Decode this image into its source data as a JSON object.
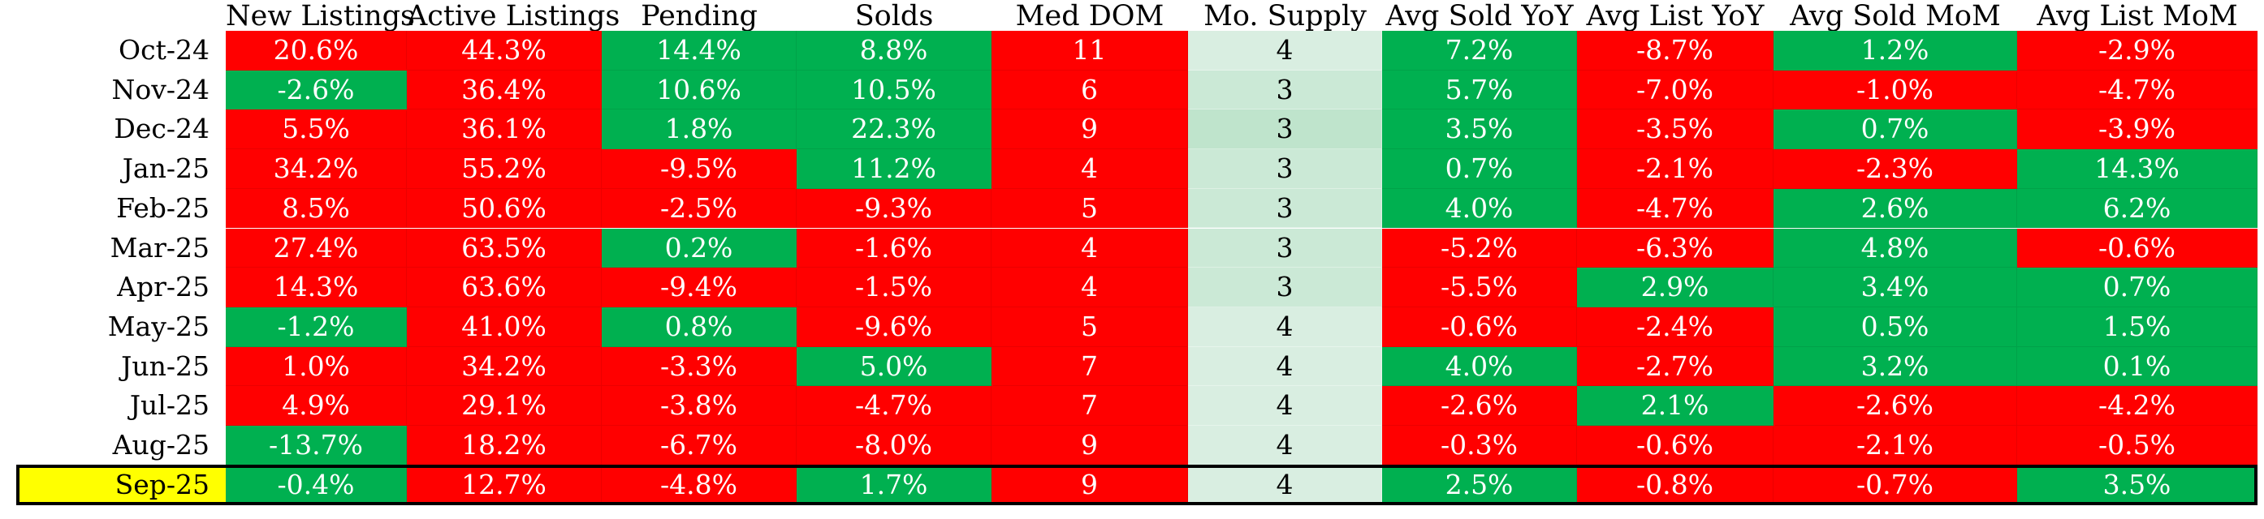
{
  "colors": {
    "negative": "#ff0000",
    "positive": "#00b050",
    "highlight": "#ffff00",
    "supply_shades": [
      "#d9eee1",
      "#cbe9d6",
      "#bfe4cc"
    ]
  },
  "table": {
    "columns": [
      "New Listings",
      "Active Listings",
      "Pending",
      "Solds",
      "Med DOM",
      "Mo. Supply",
      "Avg Sold YoY",
      "Avg List YoY",
      "Avg Sold MoM",
      "Avg List MoM"
    ],
    "highlighted_row": "Sep-25",
    "rows": [
      {
        "label": "Oct-24",
        "cells": [
          {
            "text": "20.6%",
            "status": "red"
          },
          {
            "text": "44.3%",
            "status": "red"
          },
          {
            "text": "14.4%",
            "status": "green"
          },
          {
            "text": "8.8%",
            "status": "green"
          },
          {
            "text": "11",
            "status": "red"
          },
          {
            "text": "4",
            "status": "supply",
            "shade": 0
          },
          {
            "text": "7.2%",
            "status": "green"
          },
          {
            "text": "-8.7%",
            "status": "red"
          },
          {
            "text": "1.2%",
            "status": "green"
          },
          {
            "text": "-2.9%",
            "status": "red"
          }
        ]
      },
      {
        "label": "Nov-24",
        "cells": [
          {
            "text": "-2.6%",
            "status": "green"
          },
          {
            "text": "36.4%",
            "status": "red"
          },
          {
            "text": "10.6%",
            "status": "green"
          },
          {
            "text": "10.5%",
            "status": "green"
          },
          {
            "text": "6",
            "status": "red"
          },
          {
            "text": "3",
            "status": "supply",
            "shade": 1
          },
          {
            "text": "5.7%",
            "status": "green"
          },
          {
            "text": "-7.0%",
            "status": "red"
          },
          {
            "text": "-1.0%",
            "status": "red"
          },
          {
            "text": "-4.7%",
            "status": "red"
          }
        ]
      },
      {
        "label": "Dec-24",
        "cells": [
          {
            "text": "5.5%",
            "status": "red"
          },
          {
            "text": "36.1%",
            "status": "red"
          },
          {
            "text": "1.8%",
            "status": "green"
          },
          {
            "text": "22.3%",
            "status": "green"
          },
          {
            "text": "9",
            "status": "red"
          },
          {
            "text": "3",
            "status": "supply",
            "shade": 2
          },
          {
            "text": "3.5%",
            "status": "green"
          },
          {
            "text": "-3.5%",
            "status": "red"
          },
          {
            "text": "0.7%",
            "status": "green"
          },
          {
            "text": "-3.9%",
            "status": "red"
          }
        ]
      },
      {
        "label": "Jan-25",
        "cells": [
          {
            "text": "34.2%",
            "status": "red"
          },
          {
            "text": "55.2%",
            "status": "red"
          },
          {
            "text": "-9.5%",
            "status": "red"
          },
          {
            "text": "11.2%",
            "status": "green"
          },
          {
            "text": "4",
            "status": "red"
          },
          {
            "text": "3",
            "status": "supply",
            "shade": 1
          },
          {
            "text": "0.7%",
            "status": "green"
          },
          {
            "text": "-2.1%",
            "status": "red"
          },
          {
            "text": "-2.3%",
            "status": "red"
          },
          {
            "text": "14.3%",
            "status": "green"
          }
        ]
      },
      {
        "label": "Feb-25",
        "cells": [
          {
            "text": "8.5%",
            "status": "red"
          },
          {
            "text": "50.6%",
            "status": "red"
          },
          {
            "text": "-2.5%",
            "status": "red"
          },
          {
            "text": "-9.3%",
            "status": "red"
          },
          {
            "text": "5",
            "status": "red"
          },
          {
            "text": "3",
            "status": "supply",
            "shade": 1
          },
          {
            "text": "4.0%",
            "status": "green"
          },
          {
            "text": "-4.7%",
            "status": "red"
          },
          {
            "text": "2.6%",
            "status": "green"
          },
          {
            "text": "6.2%",
            "status": "green"
          }
        ]
      },
      {
        "label": "Mar-25",
        "cells": [
          {
            "text": "27.4%",
            "status": "red"
          },
          {
            "text": "63.5%",
            "status": "red"
          },
          {
            "text": "0.2%",
            "status": "green"
          },
          {
            "text": "-1.6%",
            "status": "red"
          },
          {
            "text": "4",
            "status": "red"
          },
          {
            "text": "3",
            "status": "supply",
            "shade": 1
          },
          {
            "text": "-5.2%",
            "status": "red"
          },
          {
            "text": "-6.3%",
            "status": "red"
          },
          {
            "text": "4.8%",
            "status": "green"
          },
          {
            "text": "-0.6%",
            "status": "red"
          }
        ]
      },
      {
        "label": "Apr-25",
        "cells": [
          {
            "text": "14.3%",
            "status": "red"
          },
          {
            "text": "63.6%",
            "status": "red"
          },
          {
            "text": "-9.4%",
            "status": "red"
          },
          {
            "text": "-1.5%",
            "status": "red"
          },
          {
            "text": "4",
            "status": "red"
          },
          {
            "text": "3",
            "status": "supply",
            "shade": 1
          },
          {
            "text": "-5.5%",
            "status": "red"
          },
          {
            "text": "2.9%",
            "status": "green"
          },
          {
            "text": "3.4%",
            "status": "green"
          },
          {
            "text": "0.7%",
            "status": "green"
          }
        ]
      },
      {
        "label": "May-25",
        "cells": [
          {
            "text": "-1.2%",
            "status": "green"
          },
          {
            "text": "41.0%",
            "status": "red"
          },
          {
            "text": "0.8%",
            "status": "green"
          },
          {
            "text": "-9.6%",
            "status": "red"
          },
          {
            "text": "5",
            "status": "red"
          },
          {
            "text": "4",
            "status": "supply",
            "shade": 0
          },
          {
            "text": "-0.6%",
            "status": "red"
          },
          {
            "text": "-2.4%",
            "status": "red"
          },
          {
            "text": "0.5%",
            "status": "green"
          },
          {
            "text": "1.5%",
            "status": "green"
          }
        ]
      },
      {
        "label": "Jun-25",
        "cells": [
          {
            "text": "1.0%",
            "status": "red"
          },
          {
            "text": "34.2%",
            "status": "red"
          },
          {
            "text": "-3.3%",
            "status": "red"
          },
          {
            "text": "5.0%",
            "status": "green"
          },
          {
            "text": "7",
            "status": "red"
          },
          {
            "text": "4",
            "status": "supply",
            "shade": 0
          },
          {
            "text": "4.0%",
            "status": "green"
          },
          {
            "text": "-2.7%",
            "status": "red"
          },
          {
            "text": "3.2%",
            "status": "green"
          },
          {
            "text": "0.1%",
            "status": "green"
          }
        ]
      },
      {
        "label": "Jul-25",
        "cells": [
          {
            "text": "4.9%",
            "status": "red"
          },
          {
            "text": "29.1%",
            "status": "red"
          },
          {
            "text": "-3.8%",
            "status": "red"
          },
          {
            "text": "-4.7%",
            "status": "red"
          },
          {
            "text": "7",
            "status": "red"
          },
          {
            "text": "4",
            "status": "supply",
            "shade": 0
          },
          {
            "text": "-2.6%",
            "status": "red"
          },
          {
            "text": "2.1%",
            "status": "green"
          },
          {
            "text": "-2.6%",
            "status": "red"
          },
          {
            "text": "-4.2%",
            "status": "red"
          }
        ]
      },
      {
        "label": "Aug-25",
        "cells": [
          {
            "text": "-13.7%",
            "status": "green"
          },
          {
            "text": "18.2%",
            "status": "red"
          },
          {
            "text": "-6.7%",
            "status": "red"
          },
          {
            "text": "-8.0%",
            "status": "red"
          },
          {
            "text": "9",
            "status": "red"
          },
          {
            "text": "4",
            "status": "supply",
            "shade": 0
          },
          {
            "text": "-0.3%",
            "status": "red"
          },
          {
            "text": "-0.6%",
            "status": "red"
          },
          {
            "text": "-2.1%",
            "status": "red"
          },
          {
            "text": "-0.5%",
            "status": "red"
          }
        ]
      },
      {
        "label": "Sep-25",
        "cells": [
          {
            "text": "-0.4%",
            "status": "green"
          },
          {
            "text": "12.7%",
            "status": "red"
          },
          {
            "text": "-4.8%",
            "status": "red"
          },
          {
            "text": "1.7%",
            "status": "green"
          },
          {
            "text": "9",
            "status": "red"
          },
          {
            "text": "4",
            "status": "supply",
            "shade": 0
          },
          {
            "text": "2.5%",
            "status": "green"
          },
          {
            "text": "-0.8%",
            "status": "red"
          },
          {
            "text": "-0.7%",
            "status": "red"
          },
          {
            "text": "3.5%",
            "status": "green"
          }
        ]
      }
    ]
  }
}
